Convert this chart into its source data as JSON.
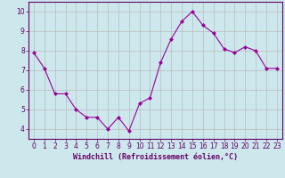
{
  "x": [
    0,
    1,
    2,
    3,
    4,
    5,
    6,
    7,
    8,
    9,
    10,
    11,
    12,
    13,
    14,
    15,
    16,
    17,
    18,
    19,
    20,
    21,
    22,
    23
  ],
  "y": [
    7.9,
    7.1,
    5.8,
    5.8,
    5.0,
    4.6,
    4.6,
    4.0,
    4.6,
    3.9,
    5.3,
    5.6,
    7.4,
    8.6,
    9.5,
    10.0,
    9.3,
    8.9,
    8.1,
    7.9,
    8.2,
    8.0,
    7.1,
    7.1
  ],
  "line_color": "#990099",
  "marker": "D",
  "marker_size": 2,
  "bg_color": "#cce8ed",
  "grid_color": "#bbbbbb",
  "axis_color": "#660066",
  "xlabel": "Windchill (Refroidissement éolien,°C)",
  "xlabel_fontsize": 6.0,
  "tick_fontsize": 5.5,
  "ylim": [
    3.5,
    10.5
  ],
  "xlim": [
    -0.5,
    23.5
  ],
  "yticks": [
    4,
    5,
    6,
    7,
    8,
    9,
    10
  ],
  "xticks": [
    0,
    1,
    2,
    3,
    4,
    5,
    6,
    7,
    8,
    9,
    10,
    11,
    12,
    13,
    14,
    15,
    16,
    17,
    18,
    19,
    20,
    21,
    22,
    23
  ]
}
